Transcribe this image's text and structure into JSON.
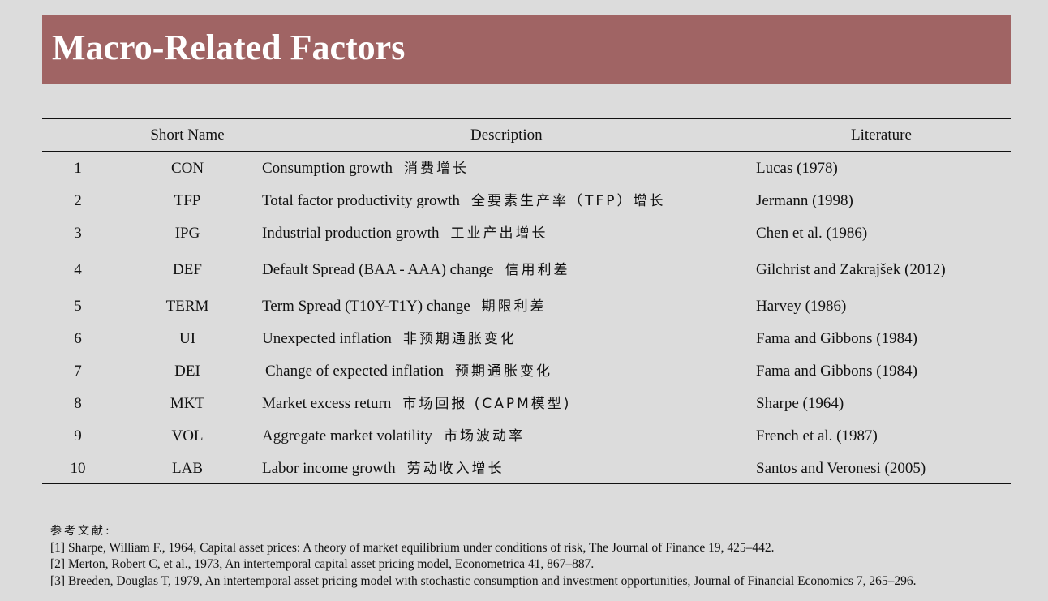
{
  "title": "Macro-Related Factors",
  "table": {
    "headers": {
      "name": "Short Name",
      "description": "Description",
      "literature": "Literature"
    },
    "rows": [
      {
        "num": "1",
        "name": "CON",
        "desc": "Consumption growth",
        "desc_cn": "消费增长",
        "lit": "Lucas (1978)"
      },
      {
        "num": "2",
        "name": "TFP",
        "desc": "Total factor productivity growth",
        "desc_cn": "全要素生产率（TFP）增长",
        "lit": "Jermann (1998)"
      },
      {
        "num": "3",
        "name": "IPG",
        "desc": "Industrial production growth",
        "desc_cn": "工业产出增长",
        "lit": "Chen et al. (1986)"
      },
      {
        "num": "4",
        "name": "DEF",
        "desc": "Default Spread (BAA - AAA) change",
        "desc_cn": "信用利差",
        "lit": "Gilchrist and Zakrajšek (2012)"
      },
      {
        "num": "5",
        "name": "TERM",
        "desc": "Term Spread (T10Y-T1Y) change",
        "desc_cn": "期限利差",
        "lit": "Harvey (1986)"
      },
      {
        "num": "6",
        "name": "UI",
        "desc": "Unexpected inflation",
        "desc_cn": "非预期通胀变化",
        "lit": "Fama and Gibbons (1984)"
      },
      {
        "num": "7",
        "name": "DEI",
        "desc": "Change of expected inflation",
        "desc_cn": "预期通胀变化",
        "lit": "Fama and Gibbons (1984)"
      },
      {
        "num": "8",
        "name": "MKT",
        "desc": "Market excess return",
        "desc_cn": "市场回报 (CAPM模型)",
        "lit": "Sharpe (1964)"
      },
      {
        "num": "9",
        "name": "VOL",
        "desc": "Aggregate market volatility",
        "desc_cn": "市场波动率",
        "lit": "French et al. (1987)"
      },
      {
        "num": "10",
        "name": "LAB",
        "desc": "Labor income growth",
        "desc_cn": "劳动收入增长",
        "lit": "Santos and Veronesi (2005)"
      }
    ]
  },
  "references": {
    "heading": "参考文献:",
    "items": [
      "[1] Sharpe, William F., 1964, Capital asset prices: A theory of market equilibrium under conditions of risk, The Journal of Finance 19, 425–442.",
      "[2] Merton, Robert C, et al., 1973, An intertemporal capital asset pricing model, Econometrica 41, 867–887.",
      "[3] Breeden, Douglas T, 1979, An intertemporal asset pricing model with stochastic consumption and investment opportunities, Journal of Financial Economics 7, 265–296."
    ]
  },
  "colors": {
    "title_bar": "#a06464",
    "background": "#dcdcdc"
  }
}
